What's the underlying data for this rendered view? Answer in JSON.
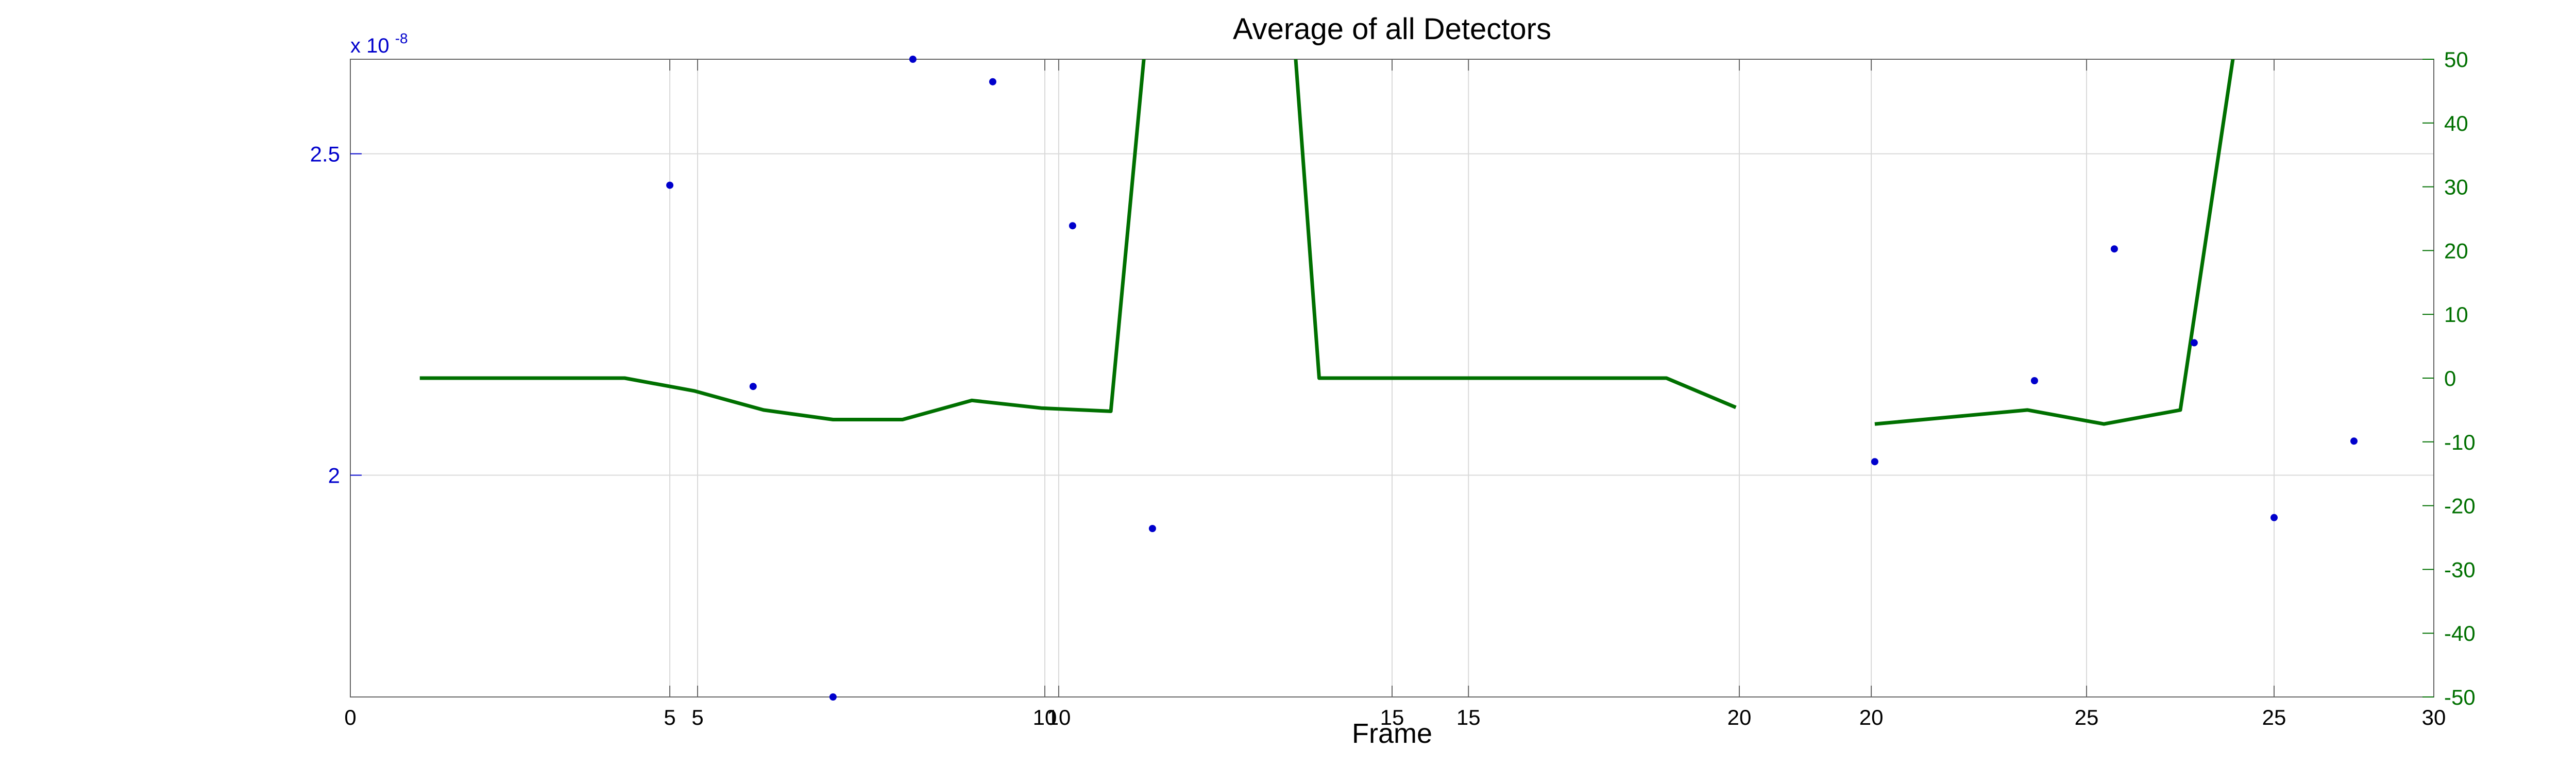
{
  "colors": {
    "left_axis": "#0000cc",
    "right_axis": "#007000",
    "grid": "#d9d9d9",
    "axes": "#666666",
    "text": "#000000",
    "background": "#ffffff"
  },
  "chart_data": {
    "type": "scatter",
    "title": "Average of all Detectors",
    "xlabel": "Frame",
    "ylabel": "",
    "y2label": "",
    "grid": true,
    "left_axis": {
      "exponent_base": "x 10",
      "exponent_power": "-8",
      "ylim": [
        1.655,
        2.647
      ],
      "ticks": [
        2,
        2.5
      ],
      "tick_labels": [
        "2",
        "2.5"
      ]
    },
    "right_axis": {
      "ylim": [
        -50,
        50
      ],
      "ticks": [
        -50,
        -40,
        -30,
        -20,
        -10,
        0,
        10,
        20,
        30,
        40,
        50
      ],
      "tick_labels": [
        "-50",
        "-40",
        "-30",
        "-20",
        "-10",
        "0",
        "10",
        "20",
        "30",
        "40",
        "50"
      ]
    },
    "xlim": [
      0,
      30
    ],
    "x_tick_groups": [
      {
        "ticks": [
          0,
          5,
          10,
          15,
          20,
          25,
          30
        ],
        "labels": [
          "0",
          "5",
          "10",
          "15",
          "20",
          "25",
          "30"
        ]
      },
      {
        "ticks": [
          4.6,
          10.2,
          16.1,
          21.9,
          27.7
        ],
        "labels": [
          "5",
          "10",
          "15",
          "20",
          "25"
        ]
      }
    ],
    "series": [
      {
        "axis": "left",
        "mark": "points",
        "color": "#0000cc",
        "x": [
          4.6,
          5.8,
          6.95,
          8.1,
          9.25,
          10.4,
          11.55,
          21.95,
          24.25,
          25.4,
          26.55,
          27.7,
          28.85
        ],
        "values": [
          2.451,
          2.138,
          1.655,
          2.647,
          2.612,
          2.388,
          1.917,
          2.021,
          2.147,
          2.352,
          2.206,
          1.934,
          2.053
        ]
      },
      {
        "axis": "right",
        "mark": "line",
        "color": "#007000",
        "segments": [
          {
            "x": [
              1.0,
              3.95,
              4.95,
              5.95,
              6.95,
              7.95,
              8.95,
              9.95,
              10.95,
              11.95,
              12.95,
              13.95,
              14.95,
              15.95,
              16.95,
              17.95,
              18.95,
              19.95
            ],
            "values": [
              0,
              0,
              -2,
              -5,
              -6.5,
              -6.5,
              -3.5,
              -4.7,
              -5.2,
              111,
              148,
              0,
              0,
              0,
              0,
              0,
              0,
              -4.6
            ]
          },
          {
            "x": [
              21.95,
              23.05,
              24.15,
              25.25,
              26.35,
              27.45
            ],
            "values": [
              -7.2,
              -6.1,
              -5,
              -7.2,
              -5,
              75
            ]
          }
        ]
      }
    ]
  }
}
